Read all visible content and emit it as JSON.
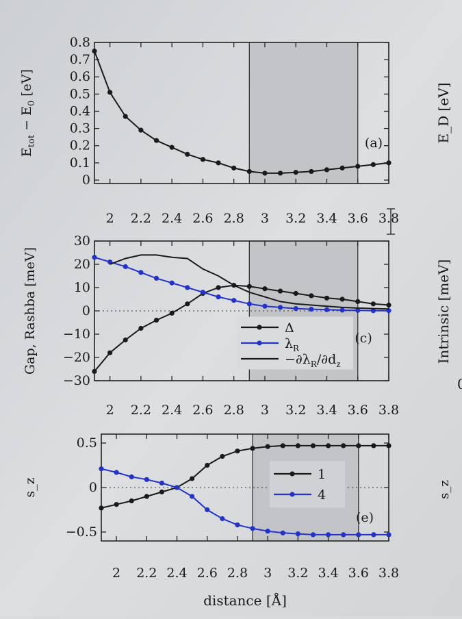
{
  "figure": {
    "xlabel": "distance [Å]",
    "right_labels": [
      "E_D [eV]",
      "Intrinsic [meV]",
      "s_z"
    ],
    "right_stub_text": "0"
  },
  "chart_data": [
    {
      "type": "line",
      "panel": "(a)",
      "ylabel_parts": [
        "E",
        "tot",
        " − E",
        "0",
        " [eV]"
      ],
      "xlim": [
        1.9,
        3.8
      ],
      "ylim": [
        -0.02,
        0.8
      ],
      "xticks": [
        "2",
        "2.2",
        "2.4",
        "2.6",
        "2.8",
        "3",
        "3.2",
        "3.4",
        "3.6",
        "3.8"
      ],
      "yticks": [
        "0",
        "0.1",
        "0.2",
        "0.3",
        "0.4",
        "0.5",
        "0.6",
        "0.7",
        "0.8"
      ],
      "shaded_region": [
        2.9,
        3.6
      ],
      "grid": false,
      "legend": "none",
      "series": [
        {
          "markers": true,
          "color": "#1a1a1a",
          "x": [
            1.9,
            2.0,
            2.1,
            2.2,
            2.3,
            2.4,
            2.5,
            2.6,
            2.7,
            2.8,
            2.9,
            3.0,
            3.1,
            3.2,
            3.3,
            3.4,
            3.5,
            3.6,
            3.7,
            3.8
          ],
          "y": [
            0.75,
            0.51,
            0.37,
            0.29,
            0.23,
            0.19,
            0.15,
            0.12,
            0.1,
            0.07,
            0.05,
            0.04,
            0.04,
            0.045,
            0.05,
            0.06,
            0.07,
            0.08,
            0.09,
            0.1
          ]
        }
      ]
    },
    {
      "type": "line",
      "panel": "(c)",
      "ylabel": "Gap, Rashba [meV]",
      "xlim": [
        1.9,
        3.8
      ],
      "ylim": [
        -30,
        30
      ],
      "xticks": [
        "2",
        "2.2",
        "2.4",
        "2.6",
        "2.8",
        "3",
        "3.2",
        "3.4",
        "3.6",
        "3.8"
      ],
      "yticks": [
        "−30",
        "−20",
        "−10",
        "0",
        "10",
        "20",
        "30"
      ],
      "shaded_region": [
        2.9,
        3.6
      ],
      "zero_line": true,
      "grid": false,
      "legend": "center-right",
      "series": [
        {
          "name": "Δ",
          "markers": true,
          "color": "#1a1a1a",
          "x": [
            1.9,
            2.0,
            2.1,
            2.2,
            2.3,
            2.4,
            2.5,
            2.6,
            2.7,
            2.8,
            2.9,
            3.0,
            3.1,
            3.2,
            3.3,
            3.4,
            3.5,
            3.6,
            3.7,
            3.8
          ],
          "y": [
            -26,
            -18,
            -12.5,
            -7.5,
            -4,
            -1,
            3,
            7.5,
            10,
            11,
            10.5,
            9.5,
            8.5,
            7.5,
            6.5,
            5.5,
            5,
            4,
            3,
            2.5
          ]
        },
        {
          "name": "λR",
          "markers": true,
          "color": "#2233cc",
          "x": [
            1.9,
            2.0,
            2.1,
            2.2,
            2.3,
            2.4,
            2.5,
            2.6,
            2.7,
            2.8,
            2.9,
            3.0,
            3.1,
            3.2,
            3.3,
            3.4,
            3.5,
            3.6,
            3.7,
            3.8
          ],
          "y": [
            23,
            21,
            19,
            16.5,
            14,
            12,
            10,
            8,
            6,
            4.5,
            3,
            2,
            1.5,
            1,
            0.7,
            0.5,
            0.3,
            0.2,
            0.1,
            0.1
          ]
        },
        {
          "name": "−∂λR/∂dz",
          "markers": false,
          "color": "#1a1a1a",
          "x": [
            2.0,
            2.1,
            2.2,
            2.3,
            2.4,
            2.5,
            2.6,
            2.7,
            2.8,
            2.9,
            3.0,
            3.1,
            3.2,
            3.3,
            3.4,
            3.5,
            3.6,
            3.7,
            3.8
          ],
          "y": [
            20,
            22.5,
            24,
            24,
            23,
            22.5,
            18,
            15,
            11,
            8,
            6,
            4,
            3,
            2.5,
            2,
            1.5,
            1.2,
            1,
            0.8
          ]
        }
      ]
    },
    {
      "type": "line",
      "panel": "(e)",
      "ylabel": "s_z",
      "xlim": [
        1.9,
        3.8
      ],
      "ylim": [
        -0.6,
        0.6
      ],
      "xticks": [
        "2",
        "2.2",
        "2.4",
        "2.6",
        "2.8",
        "3",
        "3.2",
        "3.4",
        "3.6",
        "3.8"
      ],
      "yticks": [
        "−0.5",
        "0",
        "0.5"
      ],
      "shaded_region": [
        2.9,
        3.6
      ],
      "zero_line": true,
      "grid": false,
      "legend": "center-right",
      "series": [
        {
          "name": "1",
          "markers": true,
          "color": "#1a1a1a",
          "x": [
            1.9,
            2.0,
            2.1,
            2.2,
            2.3,
            2.4,
            2.5,
            2.6,
            2.7,
            2.8,
            2.9,
            3.0,
            3.1,
            3.2,
            3.3,
            3.4,
            3.5,
            3.6,
            3.7,
            3.8
          ],
          "y": [
            -0.23,
            -0.19,
            -0.15,
            -0.1,
            -0.05,
            0.0,
            0.1,
            0.25,
            0.35,
            0.41,
            0.44,
            0.46,
            0.47,
            0.47,
            0.47,
            0.47,
            0.47,
            0.47,
            0.47,
            0.47
          ]
        },
        {
          "name": "4",
          "markers": true,
          "color": "#2233cc",
          "x": [
            1.9,
            2.0,
            2.1,
            2.2,
            2.3,
            2.4,
            2.5,
            2.6,
            2.7,
            2.8,
            2.9,
            3.0,
            3.1,
            3.2,
            3.3,
            3.4,
            3.5,
            3.6,
            3.7,
            3.8
          ],
          "y": [
            0.21,
            0.17,
            0.12,
            0.09,
            0.05,
            0.0,
            -0.1,
            -0.25,
            -0.35,
            -0.42,
            -0.46,
            -0.49,
            -0.51,
            -0.52,
            -0.53,
            -0.53,
            -0.53,
            -0.53,
            -0.53,
            -0.53
          ]
        }
      ]
    }
  ]
}
